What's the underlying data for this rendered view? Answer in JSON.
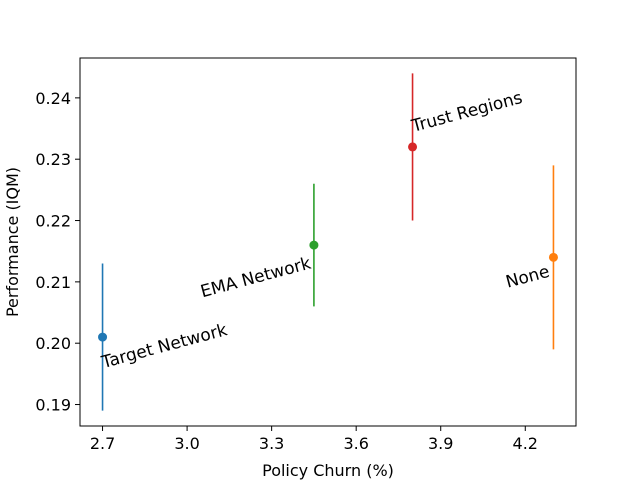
{
  "chart_data": {
    "type": "scatter",
    "title": "",
    "xlabel": "Policy Churn (%)",
    "ylabel": "Performance (IQM)",
    "xlim": [
      2.62,
      4.38
    ],
    "ylim": [
      0.1865,
      0.2465
    ],
    "xticks": [
      2.7,
      3.0,
      3.3,
      3.6,
      3.9,
      4.2
    ],
    "xtick_labels": [
      "2.7",
      "3.0",
      "3.3",
      "3.6",
      "3.9",
      "4.2"
    ],
    "yticks": [
      0.19,
      0.2,
      0.21,
      0.22,
      0.23,
      0.24
    ],
    "ytick_labels": [
      "0.19",
      "0.20",
      "0.21",
      "0.22",
      "0.23",
      "0.24"
    ],
    "grid": false,
    "points": [
      {
        "label": "Target Network",
        "x": 2.7,
        "y": 0.201,
        "err_low": 0.189,
        "err_high": 0.213,
        "color": "#1f77b4",
        "label_rotation": -15,
        "label_anchor": "start"
      },
      {
        "label": "EMA Network",
        "x": 3.45,
        "y": 0.216,
        "err_low": 0.206,
        "err_high": 0.226,
        "color": "#2ca02c",
        "label_rotation": -15,
        "label_anchor": "end"
      },
      {
        "label": "Trust Regions",
        "x": 3.8,
        "y": 0.232,
        "err_low": 0.22,
        "err_high": 0.244,
        "color": "#d62728",
        "label_rotation": -15,
        "label_anchor": "start"
      },
      {
        "label": "None",
        "x": 4.3,
        "y": 0.214,
        "err_low": 0.199,
        "err_high": 0.229,
        "color": "#ff7f0e",
        "label_rotation": -15,
        "label_anchor": "end"
      }
    ]
  }
}
